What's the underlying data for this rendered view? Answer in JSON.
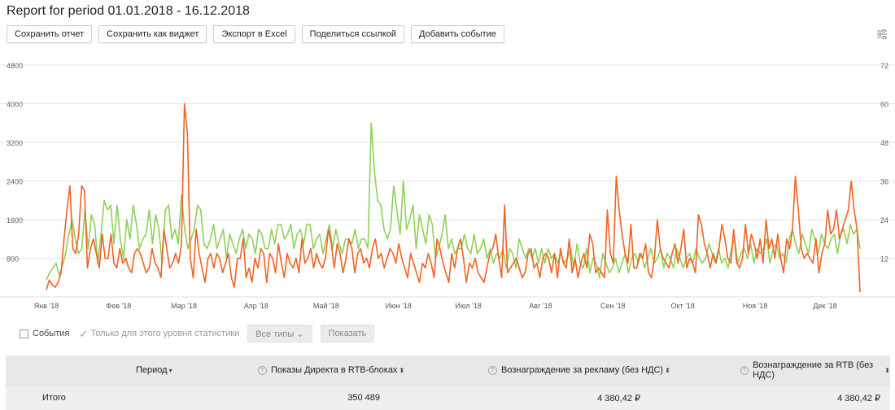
{
  "report": {
    "title": "Report for period 01.01.2018 - 16.12.2018"
  },
  "toolbar": {
    "buttons": [
      "Сохранить отчет",
      "Сохранить как виджет",
      "Экспорт в Excel",
      "Поделиться ссылкой",
      "Добавить событие"
    ]
  },
  "icons": {
    "settings": "sliders-icon",
    "info": "question-circle-icon",
    "sort": "sort-arrows-icon",
    "dropdown": "chevron-down-icon",
    "checkmark": "check-icon"
  },
  "colors": {
    "series_orange": "#f26322",
    "series_green": "#8fd05a",
    "grid": "#e6e6e6",
    "header_bg": "#e8e8e8"
  },
  "chart_data": {
    "type": "line",
    "x_tick_labels": [
      "Янв '18",
      "Фев '18",
      "Мар '18",
      "Апр '18",
      "Май '18",
      "Июн '18",
      "Июл '18",
      "Авг '18",
      "Сен '18",
      "Окт '18",
      "Ноя '18",
      "Дек '18"
    ],
    "x_range": [
      "2018-01-01",
      "2018-12-16"
    ],
    "y_left": {
      "ticks": [
        800,
        1600,
        2400,
        3200,
        4000,
        4800
      ],
      "range": [
        0,
        4800
      ]
    },
    "y_right": {
      "ticks": [
        12,
        24,
        36,
        48,
        60,
        72
      ],
      "range": [
        0,
        72
      ]
    },
    "grid": true,
    "series": [
      {
        "color": "#8fd05a",
        "axis": "left",
        "values": [
          350,
          500,
          600,
          700,
          450,
          650,
          900,
          1300,
          1600,
          1200,
          900,
          1000,
          1800,
          1000,
          1700,
          1500,
          700,
          1300,
          2000,
          1800,
          1900,
          1100,
          1900,
          1200,
          800,
          1600,
          1200,
          1900,
          1500,
          1000,
          1200,
          1300,
          1800,
          1100,
          1700,
          1400,
          700,
          1800,
          1900,
          1200,
          1400,
          1100,
          2100,
          1400,
          1000,
          1200,
          1400,
          1900,
          1800,
          1100,
          1000,
          1200,
          1500,
          1000,
          1200,
          1400,
          800,
          1300,
          1100,
          900,
          1200,
          1400,
          1000,
          1300,
          1200,
          900,
          1400,
          1300,
          1000,
          1000,
          1400,
          1100,
          1500,
          1500,
          1200,
          1300,
          1500,
          1000,
          1300,
          1400,
          1100,
          1500,
          1500,
          1000,
          1200,
          1300,
          900,
          1200,
          1500,
          1000,
          1400,
          1100,
          900,
          1200,
          1200,
          1100,
          1400,
          1000,
          1200,
          1200,
          1000,
          3600,
          2600,
          2000,
          1900,
          1400,
          1200,
          1400,
          2300,
          1800,
          1300,
          2400,
          1400,
          1600,
          1900,
          1000,
          1700,
          1400,
          1100,
          1700,
          1500,
          800,
          1000,
          1300,
          1700,
          1000,
          1200,
          900,
          1000,
          1000,
          1300,
          1000,
          900,
          1300,
          900,
          1000,
          1200,
          800,
          1000,
          700,
          900,
          800,
          1000,
          600,
          1000,
          900,
          600,
          1200,
          1000,
          800,
          1000,
          800,
          1000,
          700,
          1000,
          700,
          1000,
          800,
          900,
          700,
          900,
          700,
          800,
          1000,
          600,
          1100,
          700,
          600,
          1000,
          500,
          800,
          700,
          400,
          900,
          700,
          500,
          600,
          800,
          500,
          700,
          900,
          500,
          800,
          900,
          700,
          900,
          600,
          800,
          1000,
          700,
          800,
          1000,
          600,
          900,
          800,
          600,
          1000,
          800,
          600,
          800,
          900,
          700,
          1000,
          800,
          700,
          800,
          1100,
          900,
          700,
          1000,
          700,
          800,
          600,
          1000,
          1200,
          700,
          900,
          1000,
          800,
          1100,
          700,
          1000,
          900,
          1000,
          1200,
          700,
          1000,
          1100,
          800,
          900,
          700,
          1200,
          1400,
          1100,
          900,
          1300,
          1100,
          900,
          1400,
          1200,
          900,
          1300,
          1100,
          1000,
          1200,
          1300,
          900,
          1300,
          1400,
          1100,
          1500,
          1300,
          1400,
          1000
        ]
      },
      {
        "color": "#f26322",
        "axis": "left",
        "values": [
          150,
          350,
          250,
          200,
          300,
          500,
          1200,
          1800,
          2300,
          1000,
          900,
          1300,
          2300,
          2200,
          600,
          1000,
          1200,
          900,
          600,
          1300,
          800,
          800,
          1300,
          700,
          600,
          1000,
          700,
          800,
          600,
          500,
          900,
          1000,
          900,
          700,
          500,
          600,
          1000,
          700,
          600,
          400,
          1400,
          1000,
          600,
          700,
          900,
          700,
          1100,
          4000,
          3400,
          800,
          400,
          1400,
          900,
          600,
          300,
          800,
          900,
          600,
          900,
          800,
          500,
          700,
          900,
          400,
          200,
          800,
          800,
          1200,
          400,
          600,
          300,
          800,
          600,
          1000,
          900,
          300,
          900,
          800,
          500,
          1100,
          700,
          400,
          900,
          700,
          600,
          800,
          500,
          1200,
          700,
          800,
          1000,
          600,
          900,
          700,
          600,
          800,
          1400,
          1100,
          600,
          1100,
          900,
          500,
          800,
          1200,
          1000,
          500,
          900,
          1000,
          700,
          800,
          600,
          1000,
          1200,
          800,
          900,
          600,
          800,
          1000,
          900,
          700,
          1100,
          800,
          600,
          400,
          900,
          700,
          500,
          300,
          700,
          600,
          900,
          700,
          400,
          1200,
          1000,
          700,
          500,
          300,
          900,
          600,
          1000,
          1200,
          800,
          300,
          700,
          600,
          800,
          500,
          400,
          300,
          600,
          900,
          1000,
          1300,
          800,
          400,
          1900,
          500,
          600,
          700,
          800,
          600,
          400,
          500,
          900,
          1000,
          600,
          700,
          400,
          800,
          900,
          800,
          500,
          900,
          400,
          1000,
          700,
          600,
          1200,
          500,
          800,
          400,
          700,
          900,
          600,
          1300,
          1100,
          500,
          600,
          500,
          400,
          1800,
          900,
          700,
          2500,
          1800,
          1300,
          900,
          700,
          1500,
          600,
          600,
          900,
          800,
          1100,
          500,
          400,
          800,
          1600,
          1000,
          800,
          700,
          600,
          900,
          1100,
          700,
          1000,
          1400,
          600,
          800,
          700,
          500,
          1700,
          1500,
          1100,
          900,
          600,
          900,
          700,
          1000,
          1500,
          1200,
          800,
          700,
          1400,
          700,
          600,
          800,
          1500,
          900,
          1300,
          1100,
          800,
          1200,
          700,
          1600,
          1000,
          1200,
          800,
          1300,
          800,
          500,
          1200,
          1000,
          1400,
          2500,
          1800,
          1000,
          800,
          900,
          800,
          700,
          1200,
          500,
          900,
          1100,
          1800,
          1300,
          1400,
          1800,
          1200,
          1400,
          1600,
          1800,
          2400,
          1800,
          1400,
          100
        ]
      }
    ]
  },
  "filters": {
    "events_label": "События",
    "this_level_label": "Только для этого уровня статистики",
    "types_dropdown": "Все типы",
    "show_button": "Показать"
  },
  "table": {
    "headers": {
      "period": "Период",
      "impressions": "Показы Директа в RTB-блоках",
      "ad_reward": "Вознаграждение за рекламу (без НДС)",
      "rtb_reward": "Вознаграждение за RTB (без НДС)"
    },
    "total_row": {
      "label": "Итого",
      "impressions": "350 489",
      "ad_reward": "4 380,42 ₽",
      "rtb_reward": "4 380,42 ₽"
    }
  }
}
